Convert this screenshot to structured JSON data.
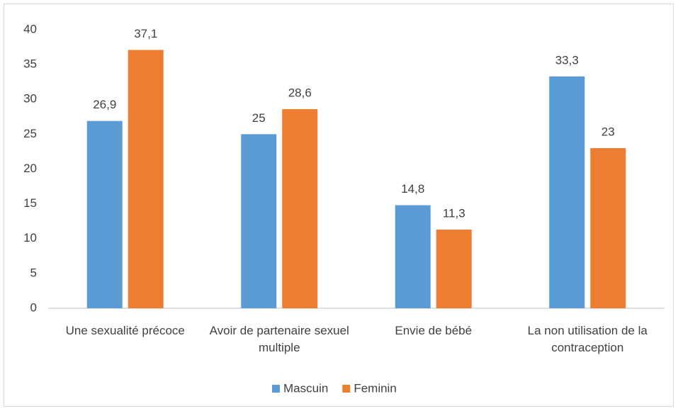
{
  "chart_data": {
    "type": "bar",
    "categories": [
      "Une sexualité précoce",
      "Avoir de partenaire sexuel multiple",
      "Envie de bébé",
      "La non utilisation de la contraception"
    ],
    "series": [
      {
        "name": "Mascuin",
        "color": "#5b9bd5",
        "values": [
          26.9,
          25,
          14.8,
          33.3
        ],
        "value_labels": [
          "26,9",
          "25",
          "14,8",
          "33,3"
        ]
      },
      {
        "name": "Feminin",
        "color": "#ed7d31",
        "values": [
          37.1,
          28.6,
          11.3,
          23
        ],
        "value_labels": [
          "37,1",
          "28,6",
          "11,3",
          "23"
        ]
      }
    ],
    "ylim": [
      0,
      40
    ],
    "yticks": [
      0,
      5,
      10,
      15,
      20,
      25,
      30,
      35,
      40
    ],
    "grid": false,
    "legend": "bottom"
  }
}
